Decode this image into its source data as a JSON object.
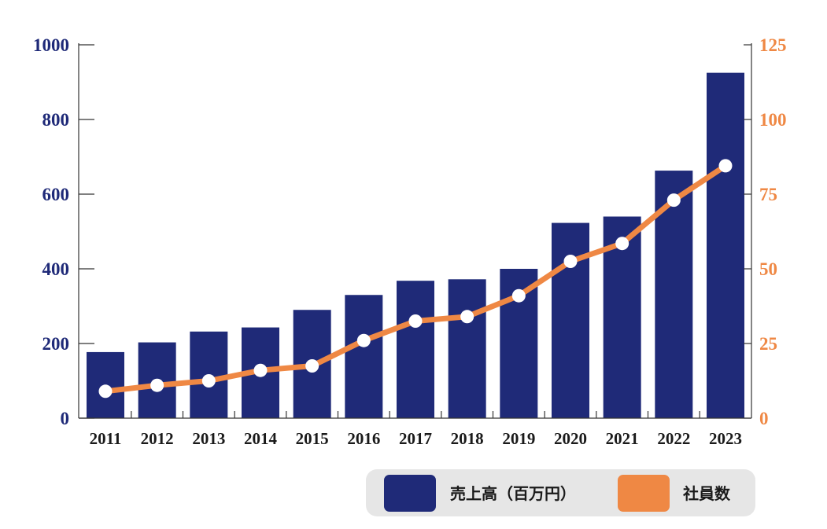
{
  "chart_data": {
    "type": "bar",
    "categories": [
      "2011",
      "2012",
      "2013",
      "2014",
      "2015",
      "2016",
      "2017",
      "2018",
      "2019",
      "2020",
      "2021",
      "2022",
      "2023"
    ],
    "series": [
      {
        "name": "売上高（百万円）",
        "type": "bar",
        "axis": "left",
        "color": "#1f2a78",
        "values": [
          177,
          203,
          232,
          243,
          290,
          330,
          368,
          372,
          400,
          523,
          540,
          663,
          925
        ]
      },
      {
        "name": "社員数",
        "type": "line",
        "axis": "right",
        "color": "#ef8844",
        "values": [
          9,
          11,
          12.5,
          16,
          17.5,
          26,
          32.5,
          34,
          41,
          52.5,
          58.5,
          73,
          84.5
        ]
      }
    ],
    "y_left": {
      "ylim": [
        0,
        1000
      ],
      "ticks": [
        "0",
        "200",
        "400",
        "600",
        "800",
        "1000"
      ],
      "color": "#1f2a78"
    },
    "y_right": {
      "ylim": [
        0,
        125
      ],
      "ticks": [
        "0",
        "25",
        "50",
        "75",
        "100",
        "125"
      ],
      "color": "#ef8844"
    },
    "grid": false,
    "legend": {
      "position": "bottom-right",
      "background": "#e6e6e6"
    },
    "point_marker_color": "#ffffff"
  }
}
